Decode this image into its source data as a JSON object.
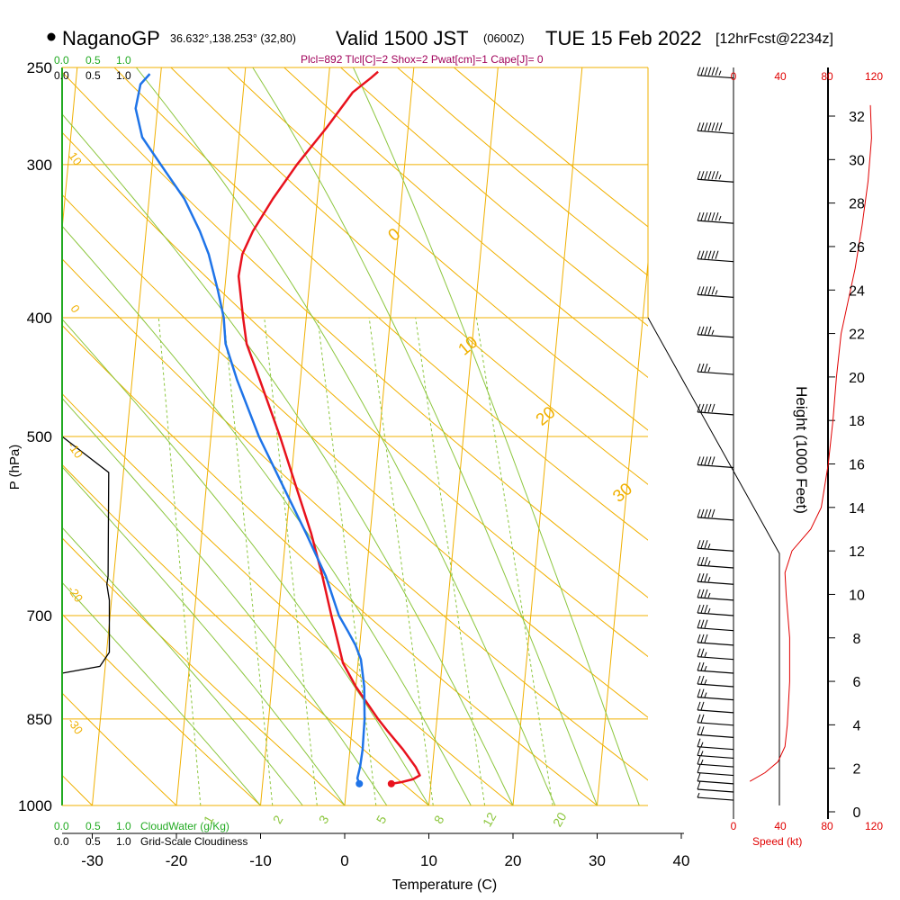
{
  "header": {
    "station": "NaganoGP",
    "coords": "36.632°,138.253° (32,80)",
    "valid": "Valid 1500 JST",
    "zulu": "(0600Z)",
    "date": "TUE 15 Feb 2022",
    "forecast": "[12hrFcst@2234z]",
    "indices": "Plcl=892 Tlcl[C]=2 Shox=2 Pwat[cm]=1 Cape[J]= 0"
  },
  "scale_labels": {
    "cloudwater_ticks": [
      "0.0",
      "0.5",
      "1.0"
    ],
    "cloudiness_ticks": [
      "0.0",
      "0.5",
      "1.0"
    ],
    "cloudwater_title": "CloudWater (g/Kg)",
    "cloudiness_title": "Grid-Scale Cloudiness",
    "speed_title": "Speed (kt)"
  },
  "colors": {
    "temperature": "#e8121d",
    "dewpoint": "#1f74e8",
    "isotherm": "#f0b000",
    "dry_adiabat": "#f0b000",
    "moist_adiabat": "#8cc63e",
    "mixing_ratio": "#8cc63e",
    "cloudwater_axis": "#22aa22",
    "speed": "#e00000",
    "header_indices": "#a0005a"
  },
  "chart_data": {
    "type": "line",
    "title": "NaganoGP Valid 1500 JST (0600Z) TUE 15 Feb 2022",
    "xlabel": "Temperature (C)",
    "ylabel": "P (hPa)",
    "y2label": "Height (1000 Feet)",
    "pressure_ticks": [
      250,
      300,
      400,
      500,
      700,
      850,
      1000
    ],
    "temperature_ticks": [
      -30,
      -20,
      -10,
      0,
      10,
      20,
      30,
      40
    ],
    "height_ticks": [
      0,
      2,
      4,
      6,
      8,
      10,
      12,
      14,
      16,
      18,
      20,
      22,
      24,
      26,
      28,
      30,
      32
    ],
    "speed_ticks": [
      0,
      40,
      80,
      120
    ],
    "isotherm_labels": [
      {
        "text": "0",
        "t": 0,
        "p": 345
      },
      {
        "text": "10",
        "t": 10,
        "p": 425
      },
      {
        "text": "20",
        "t": 20,
        "p": 485
      },
      {
        "text": "30",
        "t": 30,
        "p": 560
      }
    ],
    "dry_adiabat_labels": [
      {
        "text": "10",
        "p": 298
      },
      {
        "text": "0",
        "p": 395
      },
      {
        "text": "-10",
        "p": 515
      },
      {
        "text": "-20",
        "p": 675
      },
      {
        "text": "-30",
        "p": 865
      }
    ],
    "mixing_ratio_labels": [
      "1",
      "2",
      "3",
      "5",
      "8",
      "12",
      "20"
    ],
    "series": [
      {
        "name": "Temperature",
        "points": [
          {
            "p": 960,
            "t": 5.3
          },
          {
            "p": 957,
            "t": 6.5
          },
          {
            "p": 952,
            "t": 7.8
          },
          {
            "p": 945,
            "t": 8.6
          },
          {
            "p": 930,
            "t": 8.0
          },
          {
            "p": 900,
            "t": 6.3
          },
          {
            "p": 870,
            "t": 4.3
          },
          {
            "p": 850,
            "t": 3.0
          },
          {
            "p": 800,
            "t": 0.0
          },
          {
            "p": 765,
            "t": -1.8
          },
          {
            "p": 740,
            "t": -2.5
          },
          {
            "p": 700,
            "t": -3.7
          },
          {
            "p": 650,
            "t": -5.2
          },
          {
            "p": 600,
            "t": -7.0
          },
          {
            "p": 550,
            "t": -9.3
          },
          {
            "p": 500,
            "t": -11.8
          },
          {
            "p": 450,
            "t": -14.8
          },
          {
            "p": 420,
            "t": -16.8
          },
          {
            "p": 400,
            "t": -17.5
          },
          {
            "p": 370,
            "t": -18.5
          },
          {
            "p": 355,
            "t": -18.3
          },
          {
            "p": 340,
            "t": -17.3
          },
          {
            "p": 320,
            "t": -15.3
          },
          {
            "p": 300,
            "t": -12.8
          },
          {
            "p": 280,
            "t": -9.7
          },
          {
            "p": 262,
            "t": -7.0
          },
          {
            "p": 255,
            "t": -5.0
          },
          {
            "p": 252,
            "t": -4.2
          }
        ]
      },
      {
        "name": "Dewpoint",
        "points": [
          {
            "p": 960,
            "t": 1.5
          },
          {
            "p": 950,
            "t": 1.2
          },
          {
            "p": 930,
            "t": 1.4
          },
          {
            "p": 900,
            "t": 1.5
          },
          {
            "p": 850,
            "t": 1.4
          },
          {
            "p": 800,
            "t": 1.0
          },
          {
            "p": 760,
            "t": 0.3
          },
          {
            "p": 740,
            "t": -0.5
          },
          {
            "p": 720,
            "t": -1.6
          },
          {
            "p": 700,
            "t": -2.8
          },
          {
            "p": 650,
            "t": -4.8
          },
          {
            "p": 600,
            "t": -7.6
          },
          {
            "p": 550,
            "t": -10.8
          },
          {
            "p": 500,
            "t": -14.3
          },
          {
            "p": 450,
            "t": -17.5
          },
          {
            "p": 420,
            "t": -19.3
          },
          {
            "p": 400,
            "t": -19.8
          },
          {
            "p": 380,
            "t": -20.8
          },
          {
            "p": 355,
            "t": -22.3
          },
          {
            "p": 340,
            "t": -23.6
          },
          {
            "p": 320,
            "t": -25.8
          },
          {
            "p": 300,
            "t": -29.0
          },
          {
            "p": 285,
            "t": -31.5
          },
          {
            "p": 270,
            "t": -32.6
          },
          {
            "p": 258,
            "t": -32.3
          },
          {
            "p": 253,
            "t": -31.3
          }
        ]
      },
      {
        "name": "Grid-Scale Cloudiness",
        "points": [
          {
            "p": 500,
            "v": 0.0
          },
          {
            "p": 535,
            "v": 0.74
          },
          {
            "p": 650,
            "v": 0.73
          },
          {
            "p": 660,
            "v": 0.71
          },
          {
            "p": 680,
            "v": 0.75
          },
          {
            "p": 750,
            "v": 0.75
          },
          {
            "p": 770,
            "v": 0.6
          },
          {
            "p": 780,
            "v": 0.0
          }
        ]
      },
      {
        "name": "Speed",
        "points": [
          {
            "h": 32.5,
            "kt": 117
          },
          {
            "h": 31,
            "kt": 118
          },
          {
            "h": 29,
            "kt": 115
          },
          {
            "h": 27,
            "kt": 110
          },
          {
            "h": 25,
            "kt": 104
          },
          {
            "h": 23.5,
            "kt": 98
          },
          {
            "h": 22,
            "kt": 92
          },
          {
            "h": 20,
            "kt": 88
          },
          {
            "h": 18,
            "kt": 85
          },
          {
            "h": 16,
            "kt": 81
          },
          {
            "h": 14,
            "kt": 75
          },
          {
            "h": 13,
            "kt": 66
          },
          {
            "h": 12,
            "kt": 50
          },
          {
            "h": 11,
            "kt": 44
          },
          {
            "h": 10,
            "kt": 45
          },
          {
            "h": 8,
            "kt": 48
          },
          {
            "h": 6,
            "kt": 48
          },
          {
            "h": 4,
            "kt": 46
          },
          {
            "h": 3,
            "kt": 44
          },
          {
            "h": 2.3,
            "kt": 38
          },
          {
            "h": 1.8,
            "kt": 27
          },
          {
            "h": 1.4,
            "kt": 14
          }
        ]
      }
    ],
    "wind_barbs": [
      {
        "p": 255,
        "spd": 65
      },
      {
        "p": 283,
        "spd": 70
      },
      {
        "p": 310,
        "spd": 65
      },
      {
        "p": 335,
        "spd": 65
      },
      {
        "p": 360,
        "spd": 60
      },
      {
        "p": 385,
        "spd": 55
      },
      {
        "p": 415,
        "spd": 45
      },
      {
        "p": 445,
        "spd": 35
      },
      {
        "p": 480,
        "spd": 50
      },
      {
        "p": 530,
        "spd": 50
      },
      {
        "p": 585,
        "spd": 50
      },
      {
        "p": 620,
        "spd": 35
      },
      {
        "p": 640,
        "spd": 35
      },
      {
        "p": 660,
        "spd": 35
      },
      {
        "p": 680,
        "spd": 35
      },
      {
        "p": 700,
        "spd": 35
      },
      {
        "p": 720,
        "spd": 30
      },
      {
        "p": 740,
        "spd": 30
      },
      {
        "p": 760,
        "spd": 25
      },
      {
        "p": 780,
        "spd": 25
      },
      {
        "p": 800,
        "spd": 25
      },
      {
        "p": 820,
        "spd": 25
      },
      {
        "p": 840,
        "spd": 20
      },
      {
        "p": 860,
        "spd": 20
      },
      {
        "p": 880,
        "spd": 20
      },
      {
        "p": 900,
        "spd": 15
      },
      {
        "p": 915,
        "spd": 15
      },
      {
        "p": 930,
        "spd": 15
      },
      {
        "p": 945,
        "spd": 10
      },
      {
        "p": 960,
        "spd": 10
      },
      {
        "p": 975,
        "spd": 10
      },
      {
        "p": 990,
        "spd": 5
      }
    ]
  }
}
